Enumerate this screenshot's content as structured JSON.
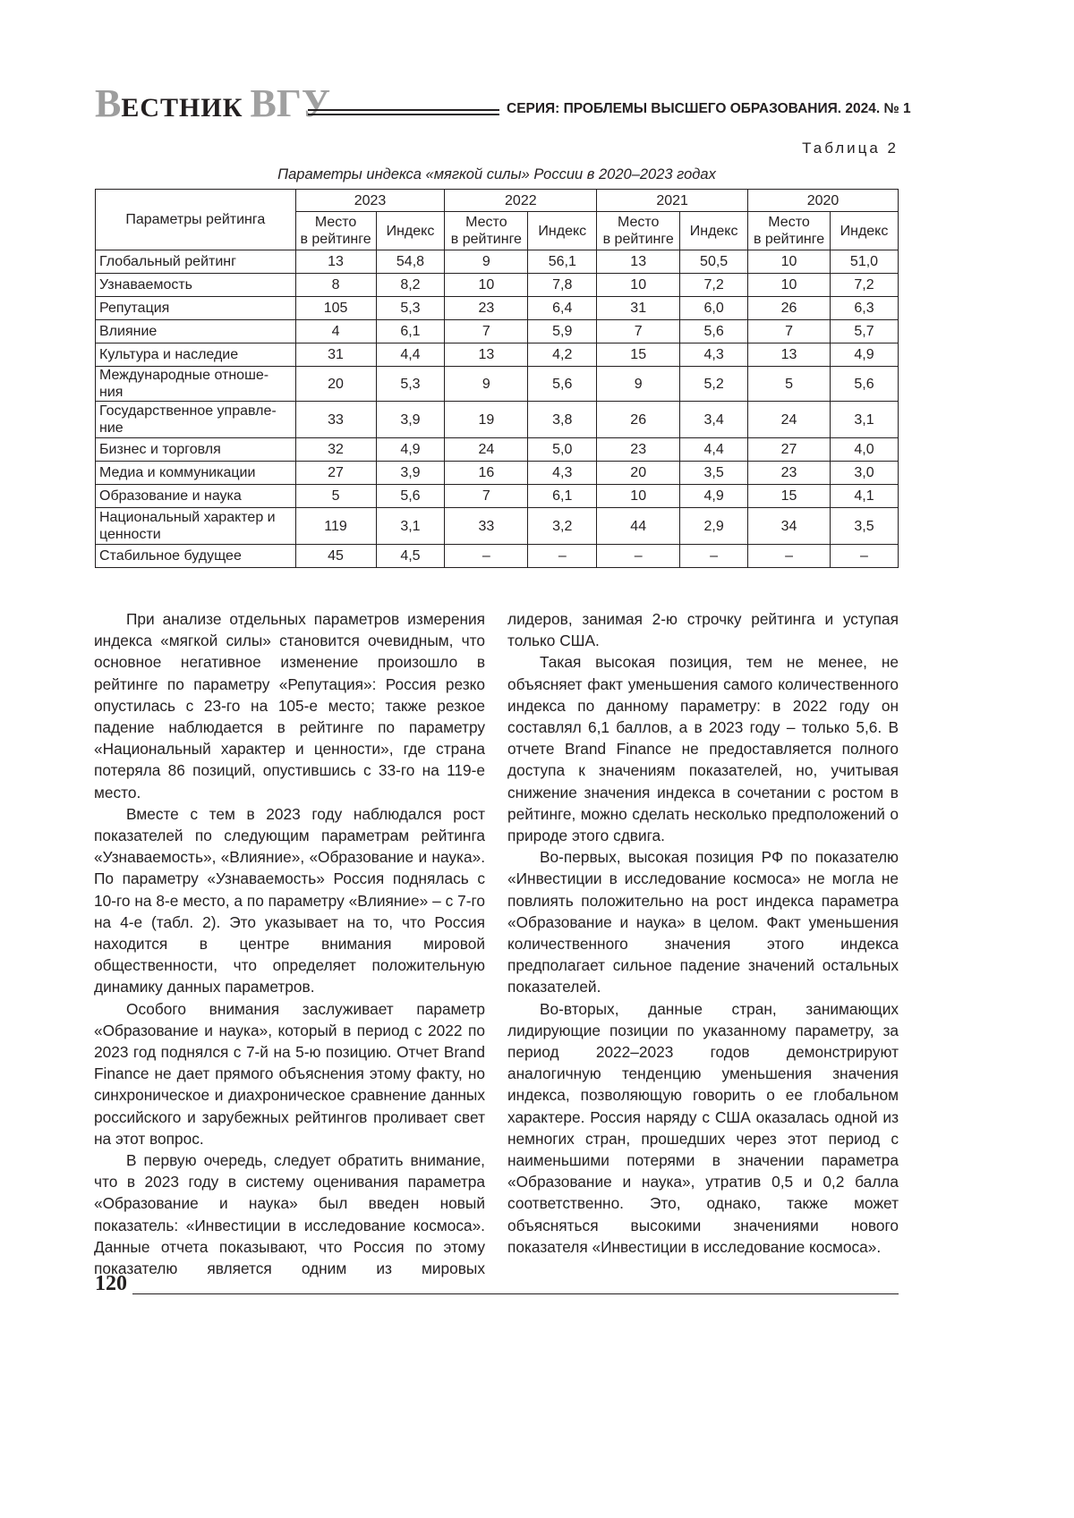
{
  "header": {
    "logo": "ВЕСТНИК ВГУ",
    "series": "СЕРИЯ: ПРОБЛЕМЫ ВЫСШЕГО ОБРАЗОВАНИЯ. 2024. № 1"
  },
  "table": {
    "number": "Таблица 2",
    "caption": "Параметры индекса «мягкой силы» России в 2020–2023 годах",
    "param_header": "Параметры рейтинга",
    "years": [
      "2023",
      "2022",
      "2021",
      "2020"
    ],
    "place_header": "Место в рейтинге",
    "index_header": "Индекс",
    "rows": [
      {
        "name": "Глобальный рейтинг",
        "v": [
          "13",
          "54,8",
          "9",
          "56,1",
          "13",
          "50,5",
          "10",
          "51,0"
        ]
      },
      {
        "name": "Узнаваемость",
        "v": [
          "8",
          "8,2",
          "10",
          "7,8",
          "10",
          "7,2",
          "10",
          "7,2"
        ]
      },
      {
        "name": "Репутация",
        "v": [
          "105",
          "5,3",
          "23",
          "6,4",
          "31",
          "6,0",
          "26",
          "6,3"
        ]
      },
      {
        "name": "Влияние",
        "v": [
          "4",
          "6,1",
          "7",
          "5,9",
          "7",
          "5,6",
          "7",
          "5,7"
        ]
      },
      {
        "name": "Культура и наследие",
        "v": [
          "31",
          "4,4",
          "13",
          "4,2",
          "15",
          "4,3",
          "13",
          "4,9"
        ]
      },
      {
        "name": "Международные отноше-ния",
        "v": [
          "20",
          "5,3",
          "9",
          "5,6",
          "9",
          "5,2",
          "5",
          "5,6"
        ]
      },
      {
        "name": "Государственное управле-ние",
        "v": [
          "33",
          "3,9",
          "19",
          "3,8",
          "26",
          "3,4",
          "24",
          "3,1"
        ]
      },
      {
        "name": "Бизнес и торговля",
        "v": [
          "32",
          "4,9",
          "24",
          "5,0",
          "23",
          "4,4",
          "27",
          "4,0"
        ]
      },
      {
        "name": "Медиа и коммуникации",
        "v": [
          "27",
          "3,9",
          "16",
          "4,3",
          "20",
          "3,5",
          "23",
          "3,0"
        ]
      },
      {
        "name": "Образование и наука",
        "v": [
          "5",
          "5,6",
          "7",
          "6,1",
          "10",
          "4,9",
          "15",
          "4,1"
        ]
      },
      {
        "name": "Национальный характер и ценности",
        "v": [
          "119",
          "3,1",
          "33",
          "3,2",
          "44",
          "2,9",
          "34",
          "3,5"
        ]
      },
      {
        "name": "Стабильное будущее",
        "v": [
          "45",
          "4,5",
          "–",
          "–",
          "–",
          "–",
          "–",
          "–"
        ]
      }
    ]
  },
  "body": {
    "left": [
      "При анализе отдельных параметров измерения индекса «мягкой силы» становится очевидным, что основное негативное изменение произошло в рейтинге по параметру «Репутация»: Россия резко опустилась с 23-го на 105-е место; также резкое падение наблюдается в рейтинге по параметру «Национальный характер и ценности», где страна потеряла 86 позиций, опустившись с 33-го на 119-е место.",
      "Вместе с тем в 2023 году наблюдался рост показателей по следующим параметрам рейтинга «Узнаваемость», «Влияние», «Образование и наука». По параметру «Узнаваемость» Россия поднялась с 10-го на 8-е место, а по параметру «Влияние» – с 7-го на 4-е (табл. 2). Это указывает на то, что Россия находится в центре внимания мировой общественности, что определяет положительную динамику данных параметров.",
      "Особого внимания заслуживает параметр «Образование и наука», который в период с 2022 по 2023 год поднялся с 7-й на 5-ю позицию. Отчет Brand Finance не дает прямого объяснения этому факту, но синхроническое и диахроническое сравнение данных российского и зарубежных рейтингов проливает свет на этот вопрос.",
      "В первую очередь, следует обратить внимание, что в 2023 году в систему оценивания параметра «Образование и наука» был введен новый показатель: «Инвестиции в исследование космоса». Данные отчета показывают, что Россия по этому показателю является одним из мировых"
    ],
    "right": [
      "лидеров, занимая 2-ю строчку рейтинга и уступая только США.",
      "Такая высокая позиция, тем не менее, не объясняет факт уменьшения самого количественного индекса по данному параметру: в 2022 году он составлял 6,1 баллов, а в 2023 году – только 5,6. В отчете Brand Finance не предоставляется полного доступа к значениям показателей, но, учитывая снижение значения индекса в сочетании с ростом в рейтинге, можно сделать несколько предположений о природе этого сдвига.",
      "Во-первых, высокая позиция РФ по показателю «Инвестиции в исследование космоса» не могла не повлиять положительно на рост индекса параметра «Образование и наука» в целом. Факт уменьшения количественного значения этого индекса предполагает сильное падение значений остальных показателей.",
      "Во-вторых, данные стран, занимающих лидирующие позиции по указанному параметру, за период 2022–2023 годов демонстрируют аналогичную тенденцию уменьшения значения индекса, позволяющую говорить о ее глобальном характере. Россия наряду с США оказалась одной из немногих стран, прошедших через этот период с наименьшими потерями в значении параметра «Образование и наука», утратив 0,5 и 0,2 балла соответственно. Это, однако, также может объясняться высокими значениями нового показателя «Инвестиции в исследование космоса»."
    ]
  },
  "footer": {
    "page_number": "120"
  }
}
